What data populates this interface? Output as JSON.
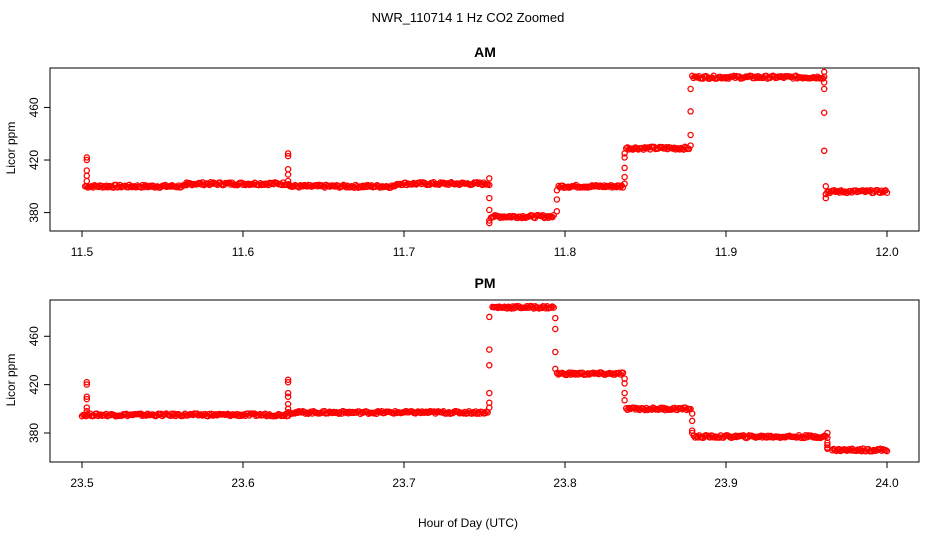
{
  "figure": {
    "title": "NWR_110714  1 Hz CO2 Zoomed",
    "xlabel": "Hour of Day (UTC)"
  },
  "chart_data": [
    {
      "type": "scatter",
      "title": "AM",
      "xlabel": "Hour of Day (UTC)",
      "ylabel": "Licor ppm",
      "xlim": [
        11.5,
        12.0
      ],
      "ylim": [
        366,
        490
      ],
      "xticks": [
        11.5,
        11.6,
        11.7,
        11.8,
        11.9,
        12.0
      ],
      "xtick_labels": [
        "11.5",
        "11.6",
        "11.7",
        "11.8",
        "11.9",
        "12.0"
      ],
      "yticks": [
        380,
        420,
        460
      ],
      "ytick_labels": [
        "380",
        "420",
        "460"
      ],
      "grid": false,
      "marker": "open-circle",
      "color": "#ff0000",
      "segments": [
        {
          "x0": 11.502,
          "x1": 11.565,
          "y": 400
        },
        {
          "x0": 11.565,
          "x1": 11.629,
          "y": 402
        },
        {
          "x0": 11.629,
          "x1": 11.695,
          "y": 400
        },
        {
          "x0": 11.695,
          "x1": 11.752,
          "y": 402
        },
        {
          "x0": 11.754,
          "x1": 11.793,
          "y": 377
        },
        {
          "x0": 11.796,
          "x1": 11.836,
          "y": 400
        },
        {
          "x0": 11.838,
          "x1": 11.877,
          "y": 429
        },
        {
          "x0": 11.879,
          "x1": 11.961,
          "y": 483
        },
        {
          "x0": 11.963,
          "x1": 12.0,
          "y": 396
        }
      ],
      "transitions": [
        {
          "x": 11.503,
          "y": [
            404,
            408,
            412,
            420,
            422
          ]
        },
        {
          "x": 11.628,
          "y": [
            404,
            409,
            413,
            423,
            425
          ]
        },
        {
          "x": 11.753,
          "y": [
            406,
            401,
            391,
            382,
            374,
            372
          ]
        },
        {
          "x": 11.795,
          "y": [
            381,
            390,
            397
          ]
        },
        {
          "x": 11.837,
          "y": [
            402,
            407,
            414,
            422,
            425
          ]
        },
        {
          "x": 11.878,
          "y": [
            431,
            439,
            457,
            474
          ]
        },
        {
          "x": 11.961,
          "y": [
            487,
            479,
            474,
            456,
            427
          ]
        },
        {
          "x": 11.962,
          "y": [
            400,
            394,
            391
          ]
        }
      ]
    },
    {
      "type": "scatter",
      "title": "PM",
      "xlabel": "Hour of Day (UTC)",
      "ylabel": "Licor ppm",
      "xlim": [
        23.5,
        24.0
      ],
      "ylim": [
        356,
        490
      ],
      "xticks": [
        23.5,
        23.6,
        23.7,
        23.8,
        23.9,
        24.0
      ],
      "xtick_labels": [
        "23.5",
        "23.6",
        "23.7",
        "23.8",
        "23.9",
        "24.0"
      ],
      "yticks": [
        380,
        420,
        460
      ],
      "ytick_labels": [
        "380",
        "420",
        "460"
      ],
      "grid": false,
      "marker": "open-circle",
      "color": "#ff0000",
      "segments": [
        {
          "x0": 23.5,
          "x1": 23.628,
          "y": 395
        },
        {
          "x0": 23.628,
          "x1": 23.752,
          "y": 397
        },
        {
          "x0": 23.755,
          "x1": 23.793,
          "y": 484
        },
        {
          "x0": 23.795,
          "x1": 23.836,
          "y": 429
        },
        {
          "x0": 23.838,
          "x1": 23.878,
          "y": 400
        },
        {
          "x0": 23.88,
          "x1": 23.962,
          "y": 377
        },
        {
          "x0": 23.966,
          "x1": 24.0,
          "y": 366
        }
      ],
      "transitions": [
        {
          "x": 23.503,
          "y": [
            398,
            401,
            408,
            410,
            420,
            422
          ]
        },
        {
          "x": 23.628,
          "y": [
            400,
            404,
            410,
            413,
            422,
            424
          ]
        },
        {
          "x": 23.753,
          "y": [
            401,
            405,
            413,
            436,
            449,
            476
          ]
        },
        {
          "x": 23.794,
          "y": [
            475,
            466,
            447,
            433
          ]
        },
        {
          "x": 23.837,
          "y": [
            425,
            421,
            413,
            407
          ]
        },
        {
          "x": 23.879,
          "y": [
            396,
            390,
            382,
            380
          ]
        },
        {
          "x": 23.963,
          "y": [
            380,
            376,
            372,
            370,
            368,
            367
          ]
        }
      ]
    }
  ]
}
